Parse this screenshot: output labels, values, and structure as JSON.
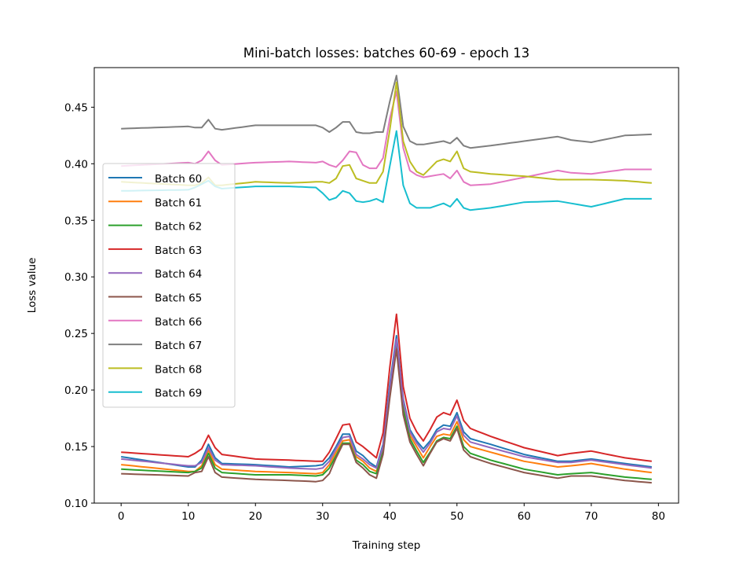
{
  "chart_data": {
    "type": "line",
    "title": "Mini-batch losses: batches 60-69 - epoch 13",
    "xlabel": "Training step",
    "ylabel": "Loss value",
    "xlim": [
      -4,
      83
    ],
    "ylim": [
      0.1,
      0.485
    ],
    "xticks": [
      0,
      10,
      20,
      30,
      40,
      50,
      60,
      70,
      80
    ],
    "yticks": [
      0.1,
      0.15,
      0.2,
      0.25,
      0.3,
      0.35,
      0.4,
      0.45
    ],
    "xtick_labels": [
      "0",
      "10",
      "20",
      "30",
      "40",
      "50",
      "60",
      "70",
      "80"
    ],
    "ytick_labels": [
      "0.10",
      "0.15",
      "0.20",
      "0.25",
      "0.30",
      "0.35",
      "0.40",
      "0.45"
    ],
    "grid": false,
    "legend_position": "center-left",
    "key_x": [
      0,
      10,
      11,
      12,
      13,
      14,
      15,
      20,
      25,
      29,
      30,
      31,
      32,
      33,
      34,
      35,
      36,
      37,
      38,
      39,
      40,
      41,
      42,
      43,
      44,
      45,
      46,
      47,
      48,
      49,
      50,
      51,
      52,
      55,
      60,
      65,
      67,
      70,
      75,
      79
    ],
    "series": [
      {
        "name": "Batch 60",
        "color": "#1f77b4",
        "values": [
          0.141,
          0.132,
          0.132,
          0.138,
          0.152,
          0.14,
          0.135,
          0.134,
          0.132,
          0.133,
          0.134,
          0.14,
          0.15,
          0.161,
          0.161,
          0.146,
          0.142,
          0.136,
          0.132,
          0.152,
          0.205,
          0.248,
          0.192,
          0.165,
          0.155,
          0.148,
          0.155,
          0.165,
          0.169,
          0.168,
          0.18,
          0.163,
          0.157,
          0.152,
          0.143,
          0.137,
          0.137,
          0.139,
          0.135,
          0.132
        ]
      },
      {
        "name": "Batch 61",
        "color": "#ff7f0e",
        "values": [
          0.134,
          0.128,
          0.128,
          0.133,
          0.147,
          0.134,
          0.13,
          0.128,
          0.127,
          0.126,
          0.127,
          0.134,
          0.145,
          0.155,
          0.156,
          0.141,
          0.137,
          0.131,
          0.128,
          0.147,
          0.198,
          0.241,
          0.186,
          0.16,
          0.15,
          0.14,
          0.15,
          0.159,
          0.161,
          0.16,
          0.172,
          0.156,
          0.15,
          0.145,
          0.137,
          0.132,
          0.133,
          0.135,
          0.13,
          0.127
        ]
      },
      {
        "name": "Batch 62",
        "color": "#2ca02c",
        "values": [
          0.13,
          0.127,
          0.128,
          0.131,
          0.144,
          0.131,
          0.127,
          0.125,
          0.125,
          0.124,
          0.125,
          0.131,
          0.142,
          0.153,
          0.153,
          0.138,
          0.134,
          0.128,
          0.126,
          0.146,
          0.196,
          0.239,
          0.183,
          0.157,
          0.146,
          0.136,
          0.145,
          0.155,
          0.158,
          0.157,
          0.168,
          0.15,
          0.144,
          0.138,
          0.13,
          0.125,
          0.126,
          0.127,
          0.123,
          0.121
        ]
      },
      {
        "name": "Batch 63",
        "color": "#d62728",
        "values": [
          0.145,
          0.141,
          0.144,
          0.148,
          0.16,
          0.149,
          0.143,
          0.139,
          0.138,
          0.137,
          0.137,
          0.145,
          0.157,
          0.169,
          0.17,
          0.154,
          0.15,
          0.145,
          0.14,
          0.162,
          0.22,
          0.267,
          0.203,
          0.175,
          0.163,
          0.155,
          0.165,
          0.176,
          0.18,
          0.178,
          0.191,
          0.173,
          0.166,
          0.159,
          0.149,
          0.142,
          0.144,
          0.146,
          0.14,
          0.137
        ]
      },
      {
        "name": "Batch 64",
        "color": "#9467bd",
        "values": [
          0.139,
          0.133,
          0.133,
          0.136,
          0.149,
          0.138,
          0.134,
          0.133,
          0.131,
          0.13,
          0.131,
          0.137,
          0.148,
          0.158,
          0.159,
          0.143,
          0.139,
          0.134,
          0.131,
          0.15,
          0.201,
          0.245,
          0.19,
          0.163,
          0.153,
          0.145,
          0.153,
          0.163,
          0.166,
          0.165,
          0.177,
          0.16,
          0.154,
          0.149,
          0.141,
          0.136,
          0.136,
          0.138,
          0.134,
          0.131
        ]
      },
      {
        "name": "Batch 65",
        "color": "#8c564b",
        "values": [
          0.126,
          0.124,
          0.127,
          0.128,
          0.141,
          0.127,
          0.123,
          0.121,
          0.12,
          0.119,
          0.12,
          0.126,
          0.14,
          0.152,
          0.152,
          0.136,
          0.131,
          0.125,
          0.122,
          0.143,
          0.193,
          0.236,
          0.178,
          0.154,
          0.143,
          0.133,
          0.144,
          0.154,
          0.157,
          0.155,
          0.166,
          0.147,
          0.141,
          0.135,
          0.127,
          0.122,
          0.124,
          0.124,
          0.12,
          0.118
        ]
      },
      {
        "name": "Batch 66",
        "color": "#e377c2",
        "values": [
          0.398,
          0.401,
          0.4,
          0.403,
          0.411,
          0.403,
          0.399,
          0.401,
          0.402,
          0.401,
          0.402,
          0.399,
          0.397,
          0.403,
          0.411,
          0.41,
          0.399,
          0.396,
          0.396,
          0.405,
          0.44,
          0.464,
          0.414,
          0.394,
          0.39,
          0.388,
          0.389,
          0.39,
          0.391,
          0.387,
          0.394,
          0.384,
          0.381,
          0.382,
          0.388,
          0.394,
          0.392,
          0.391,
          0.395,
          0.395
        ]
      },
      {
        "name": "Batch 67",
        "color": "#7f7f7f",
        "values": [
          0.431,
          0.433,
          0.432,
          0.432,
          0.439,
          0.431,
          0.43,
          0.434,
          0.434,
          0.434,
          0.432,
          0.428,
          0.432,
          0.437,
          0.437,
          0.428,
          0.427,
          0.427,
          0.428,
          0.428,
          0.455,
          0.478,
          0.433,
          0.42,
          0.417,
          0.417,
          0.418,
          0.419,
          0.42,
          0.418,
          0.423,
          0.416,
          0.414,
          0.416,
          0.42,
          0.424,
          0.421,
          0.419,
          0.425,
          0.426
        ]
      },
      {
        "name": "Batch 68",
        "color": "#bcbd22",
        "values": [
          0.384,
          0.381,
          0.381,
          0.383,
          0.388,
          0.381,
          0.381,
          0.384,
          0.383,
          0.384,
          0.384,
          0.383,
          0.387,
          0.398,
          0.399,
          0.387,
          0.385,
          0.383,
          0.383,
          0.393,
          0.43,
          0.472,
          0.42,
          0.402,
          0.393,
          0.39,
          0.396,
          0.402,
          0.404,
          0.402,
          0.411,
          0.396,
          0.393,
          0.391,
          0.389,
          0.386,
          0.386,
          0.386,
          0.385,
          0.383
        ]
      },
      {
        "name": "Batch 69",
        "color": "#17becf",
        "values": [
          0.376,
          0.377,
          0.379,
          0.382,
          0.385,
          0.38,
          0.378,
          0.38,
          0.38,
          0.379,
          0.374,
          0.368,
          0.37,
          0.376,
          0.374,
          0.367,
          0.366,
          0.367,
          0.369,
          0.366,
          0.398,
          0.429,
          0.381,
          0.365,
          0.361,
          0.361,
          0.361,
          0.363,
          0.365,
          0.362,
          0.369,
          0.361,
          0.359,
          0.361,
          0.366,
          0.367,
          0.365,
          0.362,
          0.369,
          0.369
        ]
      }
    ]
  }
}
